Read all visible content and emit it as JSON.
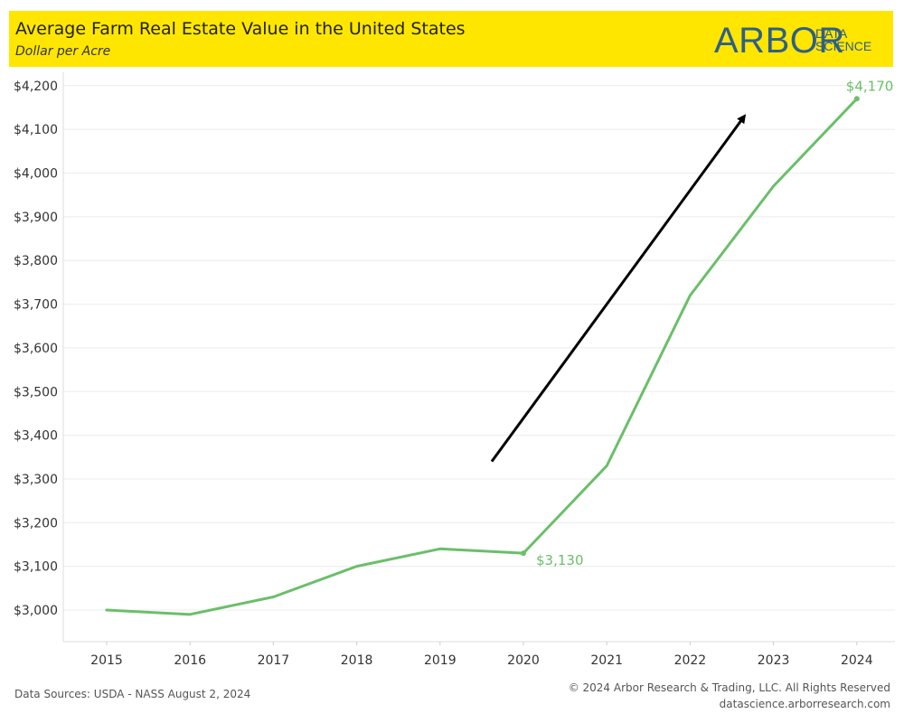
{
  "header": {
    "title": "Average Farm Real Estate Value in the United States",
    "subtitle": "Dollar per Acre"
  },
  "logo": {
    "main": "ARBOR",
    "sub_line1": "DATA",
    "sub_line2": "SCIENCE",
    "color": "#2f5f88"
  },
  "footer": {
    "source": "Data Sources: USDA - NASS August 2, 2024",
    "copyright": "© 2024 Arbor Research & Trading, LLC. All Rights Reserved",
    "website": "datascience.arborresearch.com"
  },
  "colors": {
    "header_bg": "#ffe600",
    "line": "#6abf69",
    "arrow": "#000000"
  },
  "chart_data": {
    "type": "line",
    "title": "Average Farm Real Estate Value in the United States",
    "subtitle": "Dollar per Acre",
    "xlabel": "",
    "ylabel": "",
    "x": [
      "2015",
      "2016",
      "2017",
      "2018",
      "2019",
      "2020",
      "2021",
      "2022",
      "2023",
      "2024"
    ],
    "series": [
      {
        "values": [
          3000,
          2990,
          3030,
          3100,
          3140,
          3130,
          3330,
          3720,
          3970,
          4170
        ]
      }
    ],
    "ylim": [
      2930,
      4220
    ],
    "yticks": [
      3000,
      3100,
      3200,
      3300,
      3400,
      3500,
      3600,
      3700,
      3800,
      3900,
      4000,
      4100,
      4200
    ],
    "ytick_labels": [
      "$3,000",
      "$3,100",
      "$3,200",
      "$3,300",
      "$3,400",
      "$3,500",
      "$3,600",
      "$3,700",
      "$3,800",
      "$3,900",
      "$4,000",
      "$4,100",
      "$4,200"
    ],
    "annotations": [
      {
        "x": "2020",
        "y": 3130,
        "label": "$3,130"
      },
      {
        "x": "2024",
        "y": 4170,
        "label": "$4,170"
      }
    ],
    "trend_arrow": {
      "from": {
        "x": 2019.62,
        "y": 3340
      },
      "to": {
        "x": 2022.65,
        "y": 4130
      }
    },
    "grid": "horizontal",
    "legend": "none"
  }
}
